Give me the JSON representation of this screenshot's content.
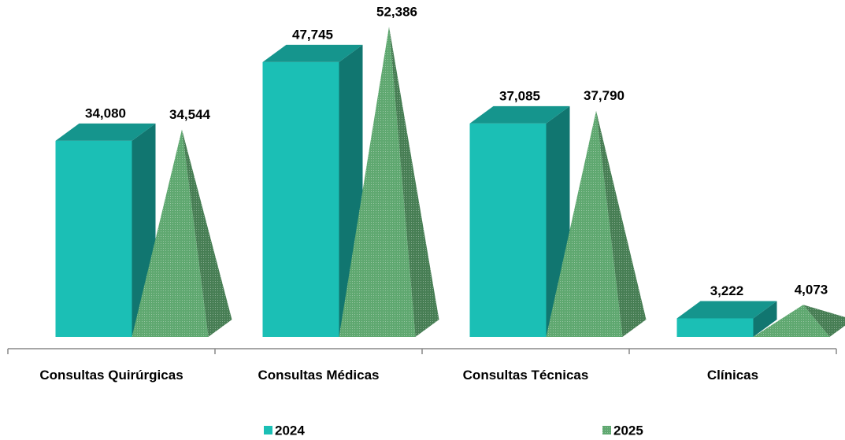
{
  "chart_data": {
    "type": "bar3d",
    "categories": [
      "Consultas Quirúrgicas",
      "Consultas Médicas",
      "Consultas Técnicas",
      "Clínicas"
    ],
    "series": [
      {
        "name": "2024",
        "color": "#1bbfb5",
        "shape": "box",
        "values": [
          34080,
          47745,
          37085,
          3222
        ],
        "value_labels": [
          "34,080",
          "47,745",
          "37,085",
          "3,222"
        ]
      },
      {
        "name": "2025",
        "color": "#5fa870",
        "shape": "pyramid",
        "values": [
          34544,
          52386,
          37790,
          4073
        ],
        "value_labels": [
          "34,544",
          "52,386",
          "37,790",
          "4,073"
        ]
      }
    ],
    "legend": "bottom"
  }
}
